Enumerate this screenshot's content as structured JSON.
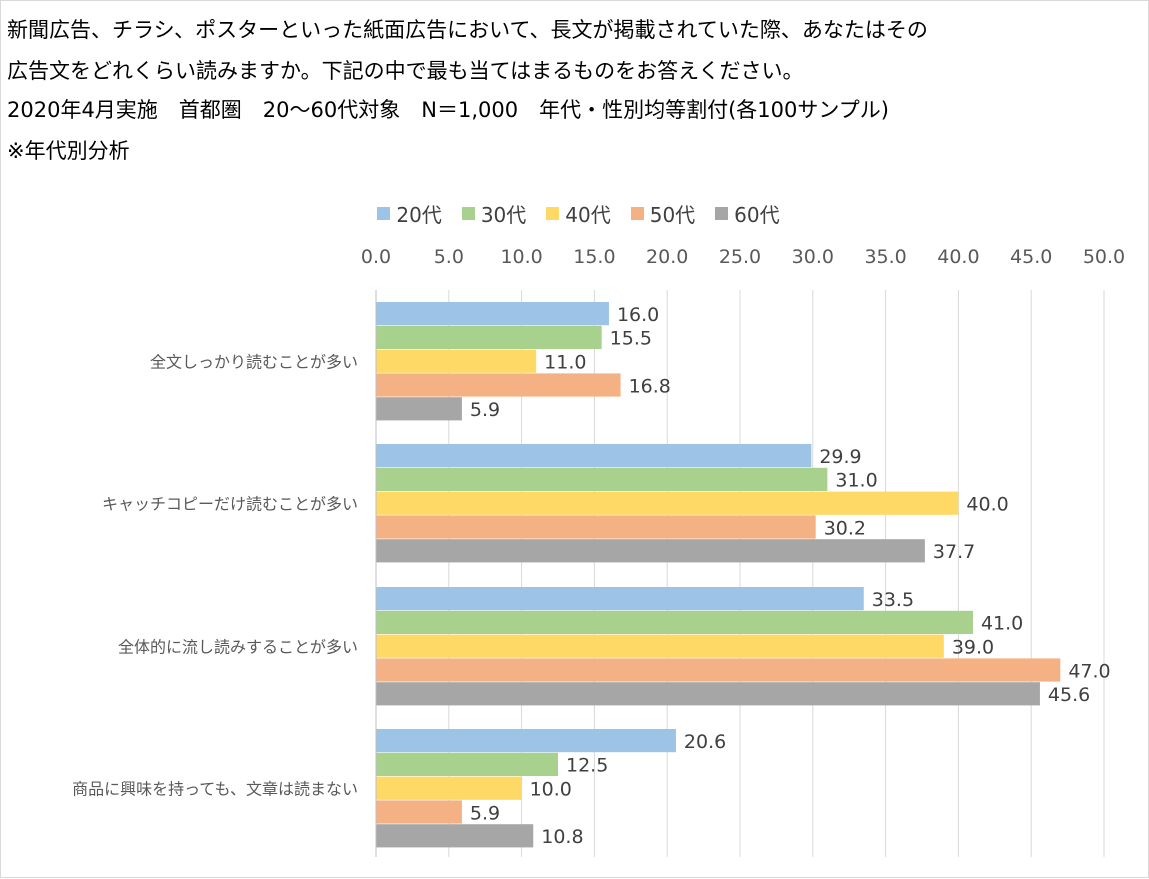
{
  "header": {
    "line1": "新聞広告、チラシ、ポスターといった紙面広告において、長文が掲載されていた際、あなたはその",
    "line2": "広告文をどれくらい読みますか。下記の中で最も当てはまるものをお答えください。",
    "line3": "2020年4月実施　首都圏　20～60代対象　N＝1,000　年代・性別均等割付(各100サンプル)",
    "line4": "※年代別分析"
  },
  "chart_data": {
    "type": "bar",
    "orientation": "horizontal",
    "categories": [
      "全文しっかり読むことが多い",
      "キャッチコピーだけ読むことが多い",
      "全体的に流し読みすることが多い",
      "商品に興味を持っても、文章は読まない"
    ],
    "series": [
      {
        "name": "20代",
        "color": "#9dc3e6",
        "values": [
          16.0,
          29.9,
          33.5,
          20.6
        ]
      },
      {
        "name": "30代",
        "color": "#a9d18e",
        "values": [
          15.5,
          31.0,
          41.0,
          12.5
        ]
      },
      {
        "name": "40代",
        "color": "#ffd966",
        "values": [
          11.0,
          40.0,
          39.0,
          10.0
        ]
      },
      {
        "name": "50代",
        "color": "#f4b183",
        "values": [
          16.8,
          30.2,
          47.0,
          5.9
        ]
      },
      {
        "name": "60代",
        "color": "#a6a6a6",
        "values": [
          5.9,
          37.7,
          45.6,
          10.8
        ]
      }
    ],
    "xlim": [
      0,
      50
    ],
    "xticks": [
      "0.0",
      "5.0",
      "10.0",
      "15.0",
      "20.0",
      "25.0",
      "30.0",
      "35.0",
      "40.0",
      "45.0",
      "50.0"
    ],
    "axis_position": "top",
    "legend_position": "top",
    "grid": true,
    "value_labels": true
  }
}
